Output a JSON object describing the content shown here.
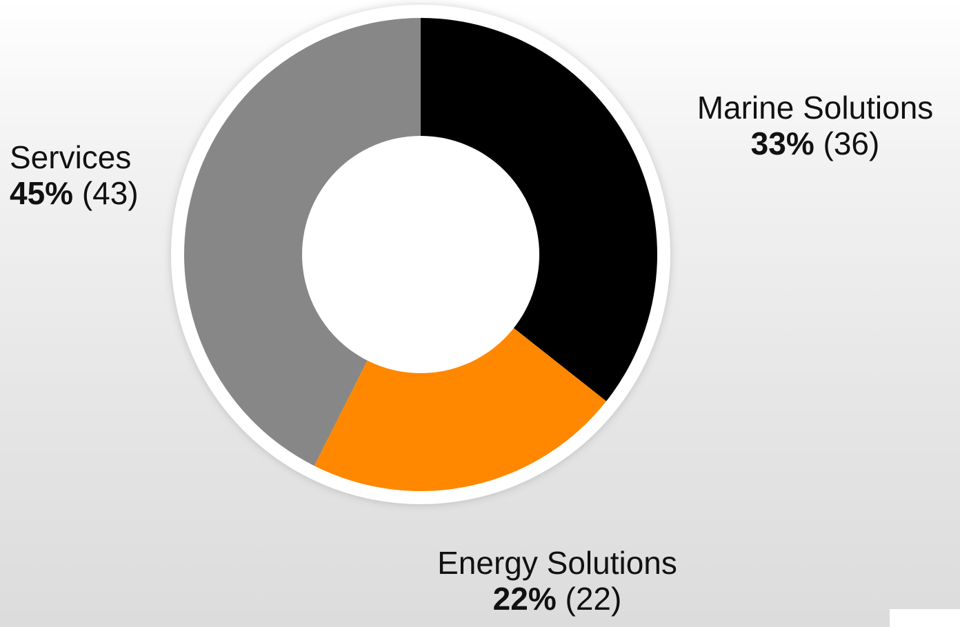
{
  "chart_data": {
    "type": "pie",
    "subtype": "donut",
    "title": "",
    "slices": [
      {
        "label": "Marine Solutions",
        "percent": "33%",
        "value": 36,
        "value_text": "(36)",
        "color": "#000000"
      },
      {
        "label": "Energy Solutions",
        "percent": "22%",
        "value": 22,
        "value_text": "(22)",
        "color": "#FF8800"
      },
      {
        "label": "Services",
        "percent": "45%",
        "value": 43,
        "value_text": "(43)",
        "color": "#878787"
      }
    ],
    "legend": "none"
  }
}
